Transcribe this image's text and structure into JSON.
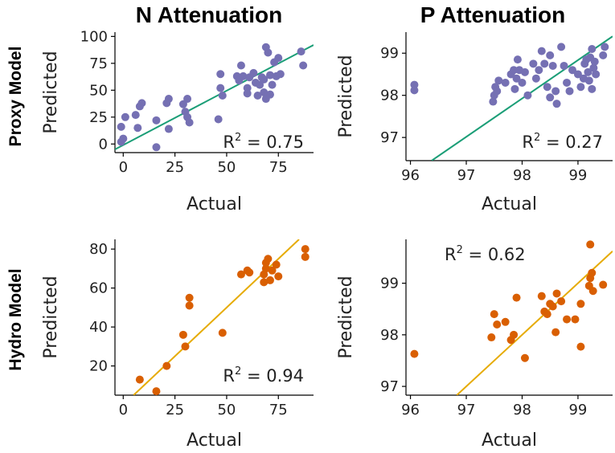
{
  "figure": {
    "col_titles": [
      "N Attenuation",
      "P Attenuation"
    ],
    "row_titles": [
      "Proxy Model",
      "Hydro Model"
    ]
  },
  "chart_data": [
    {
      "type": "scatter",
      "row": "Proxy Model",
      "col": "N Attenuation",
      "xlabel": "Actual",
      "ylabel": "Predicted",
      "xlim": [
        -4,
        92
      ],
      "ylim": [
        -8,
        104
      ],
      "xticks": [
        0,
        25,
        50,
        75
      ],
      "yticks": [
        0,
        25,
        50,
        75,
        100
      ],
      "tick_labels_x": [
        "0",
        "25",
        "50",
        "75"
      ],
      "tick_labels_y": [
        "0",
        "25",
        "50",
        "75",
        "100"
      ],
      "point_color": "#7570b3",
      "line_color": "#1b9e77",
      "fit_line": [
        [
          -4,
          -5
        ],
        [
          92,
          92
        ]
      ],
      "r2": "R² = 0.75",
      "r2_sup": "2",
      "r2_pre": "R",
      "r2_post": " = 0.75",
      "r2_anchor": "bottom-right",
      "points": [
        [
          -1,
          2
        ],
        [
          -1,
          16
        ],
        [
          0,
          5
        ],
        [
          1,
          25
        ],
        [
          6,
          27
        ],
        [
          7,
          15
        ],
        [
          8,
          35
        ],
        [
          9,
          38
        ],
        [
          16,
          -3
        ],
        [
          16,
          22
        ],
        [
          21,
          38
        ],
        [
          22,
          42
        ],
        [
          22,
          14
        ],
        [
          29,
          37
        ],
        [
          30,
          30
        ],
        [
          31,
          25
        ],
        [
          31,
          42
        ],
        [
          32,
          20
        ],
        [
          46,
          23
        ],
        [
          47,
          65
        ],
        [
          47,
          52
        ],
        [
          48,
          45
        ],
        [
          55,
          63
        ],
        [
          56,
          59
        ],
        [
          57,
          73
        ],
        [
          58,
          63
        ],
        [
          60,
          52
        ],
        [
          60,
          47
        ],
        [
          61,
          62
        ],
        [
          63,
          66
        ],
        [
          64,
          57
        ],
        [
          65,
          45
        ],
        [
          66,
          55
        ],
        [
          67,
          62
        ],
        [
          68,
          48
        ],
        [
          68,
          60
        ],
        [
          69,
          90
        ],
        [
          69,
          42
        ],
        [
          70,
          85
        ],
        [
          71,
          64
        ],
        [
          71,
          46
        ],
        [
          72,
          55
        ],
        [
          73,
          76
        ],
        [
          74,
          63
        ],
        [
          75,
          80
        ],
        [
          76,
          65
        ],
        [
          86,
          86
        ],
        [
          87,
          73
        ]
      ]
    },
    {
      "type": "scatter",
      "row": "Proxy Model",
      "col": "P Attenuation",
      "xlabel": "Actual",
      "ylabel": "Predicted",
      "xlim": [
        95.92,
        99.62
      ],
      "ylim": [
        96.45,
        99.5
      ],
      "xticks": [
        96,
        97,
        98,
        99
      ],
      "yticks": [
        97,
        98,
        99
      ],
      "tick_labels_x": [
        "96",
        "97",
        "98",
        "99"
      ],
      "tick_labels_y": [
        "97",
        "98",
        "99"
      ],
      "point_color": "#7570b3",
      "line_color": "#1b9e77",
      "fit_line": [
        [
          96.38,
          96.45
        ],
        [
          99.62,
          99.4
        ]
      ],
      "r2": "R² = 0.27",
      "r2_sup": "2",
      "r2_pre": "R",
      "r2_post": " = 0.27",
      "r2_anchor": "bottom-right",
      "points": [
        [
          96.07,
          98.25
        ],
        [
          96.07,
          98.12
        ],
        [
          97.48,
          97.85
        ],
        [
          97.5,
          98.0
        ],
        [
          97.52,
          98.2
        ],
        [
          97.55,
          98.1
        ],
        [
          97.58,
          98.35
        ],
        [
          97.7,
          98.3
        ],
        [
          97.8,
          98.5
        ],
        [
          97.85,
          98.6
        ],
        [
          97.87,
          98.15
        ],
        [
          97.9,
          98.4
        ],
        [
          97.92,
          98.85
        ],
        [
          97.95,
          98.6
        ],
        [
          98.0,
          98.3
        ],
        [
          98.05,
          98.55
        ],
        [
          98.1,
          98.0
        ],
        [
          98.2,
          98.75
        ],
        [
          98.25,
          98.4
        ],
        [
          98.3,
          98.6
        ],
        [
          98.35,
          99.05
        ],
        [
          98.4,
          98.75
        ],
        [
          98.45,
          98.2
        ],
        [
          98.5,
          98.95
        ],
        [
          98.5,
          97.95
        ],
        [
          98.55,
          98.7
        ],
        [
          98.6,
          98.1
        ],
        [
          98.62,
          97.8
        ],
        [
          98.7,
          99.15
        ],
        [
          98.75,
          98.7
        ],
        [
          98.8,
          98.3
        ],
        [
          98.85,
          98.1
        ],
        [
          98.9,
          98.6
        ],
        [
          99.0,
          98.5
        ],
        [
          99.05,
          98.2
        ],
        [
          99.1,
          98.4
        ],
        [
          99.12,
          98.75
        ],
        [
          99.15,
          98.85
        ],
        [
          99.18,
          98.55
        ],
        [
          99.2,
          98.35
        ],
        [
          99.22,
          98.9
        ],
        [
          99.25,
          98.15
        ],
        [
          99.25,
          99.1
        ],
        [
          99.28,
          98.65
        ],
        [
          99.3,
          98.8
        ],
        [
          99.32,
          98.5
        ],
        [
          99.45,
          98.95
        ],
        [
          99.48,
          99.15
        ]
      ]
    },
    {
      "type": "scatter",
      "row": "Hydro Model",
      "col": "N Attenuation",
      "xlabel": "Actual",
      "ylabel": "Predicted",
      "xlim": [
        -4,
        92
      ],
      "ylim": [
        5,
        85
      ],
      "xticks": [
        0,
        25,
        50,
        75
      ],
      "yticks": [
        20,
        40,
        60,
        80
      ],
      "tick_labels_x": [
        "0",
        "25",
        "50",
        "75"
      ],
      "tick_labels_y": [
        "20",
        "40",
        "60",
        "80"
      ],
      "point_color": "#d95f02",
      "line_color": "#e6ab02",
      "fit_line": [
        [
          5,
          5
        ],
        [
          85,
          85
        ]
      ],
      "r2": "R² = 0.94",
      "r2_sup": "2",
      "r2_pre": "R",
      "r2_post": " = 0.94",
      "r2_anchor": "bottom-right",
      "points": [
        [
          8,
          13
        ],
        [
          16,
          7
        ],
        [
          21,
          20
        ],
        [
          29,
          36
        ],
        [
          30,
          30
        ],
        [
          32,
          55
        ],
        [
          32,
          51
        ],
        [
          48,
          37
        ],
        [
          57,
          67
        ],
        [
          60,
          69
        ],
        [
          61,
          68
        ],
        [
          68,
          63
        ],
        [
          68,
          67
        ],
        [
          69,
          70
        ],
        [
          69,
          73
        ],
        [
          70,
          75
        ],
        [
          71,
          64
        ],
        [
          72,
          69
        ],
        [
          74,
          72
        ],
        [
          75,
          66
        ],
        [
          88,
          80
        ],
        [
          88,
          76
        ]
      ]
    },
    {
      "type": "scatter",
      "row": "Hydro Model",
      "col": "P Attenuation",
      "xlabel": "Actual",
      "ylabel": "Predicted",
      "xlim": [
        95.92,
        99.62
      ],
      "ylim": [
        96.83,
        99.85
      ],
      "xticks": [
        96,
        97,
        98,
        99
      ],
      "yticks": [
        97,
        98,
        99
      ],
      "tick_labels_x": [
        "96",
        "97",
        "98",
        "99"
      ],
      "tick_labels_y": [
        "97",
        "98",
        "99"
      ],
      "point_color": "#d95f02",
      "line_color": "#e6ab02",
      "fit_line": [
        [
          96.83,
          96.83
        ],
        [
          99.62,
          99.62
        ]
      ],
      "r2": "R² = 0.62",
      "r2_sup": "2",
      "r2_pre": "R",
      "r2_post": " = 0.62",
      "r2_anchor": "top-left",
      "points": [
        [
          96.07,
          97.63
        ],
        [
          97.45,
          97.95
        ],
        [
          97.5,
          98.4
        ],
        [
          97.55,
          98.2
        ],
        [
          97.7,
          98.25
        ],
        [
          97.8,
          97.9
        ],
        [
          97.85,
          98.0
        ],
        [
          97.9,
          98.72
        ],
        [
          98.05,
          97.55
        ],
        [
          98.35,
          98.75
        ],
        [
          98.4,
          98.45
        ],
        [
          98.45,
          98.4
        ],
        [
          98.5,
          98.6
        ],
        [
          98.55,
          98.55
        ],
        [
          98.6,
          98.05
        ],
        [
          98.62,
          98.8
        ],
        [
          98.7,
          98.65
        ],
        [
          98.8,
          98.3
        ],
        [
          98.95,
          98.3
        ],
        [
          99.05,
          98.6
        ],
        [
          99.05,
          97.77
        ],
        [
          99.2,
          98.95
        ],
        [
          99.22,
          99.1
        ],
        [
          99.22,
          99.75
        ],
        [
          99.25,
          99.2
        ],
        [
          99.27,
          98.85
        ],
        [
          99.45,
          98.97
        ]
      ]
    }
  ]
}
